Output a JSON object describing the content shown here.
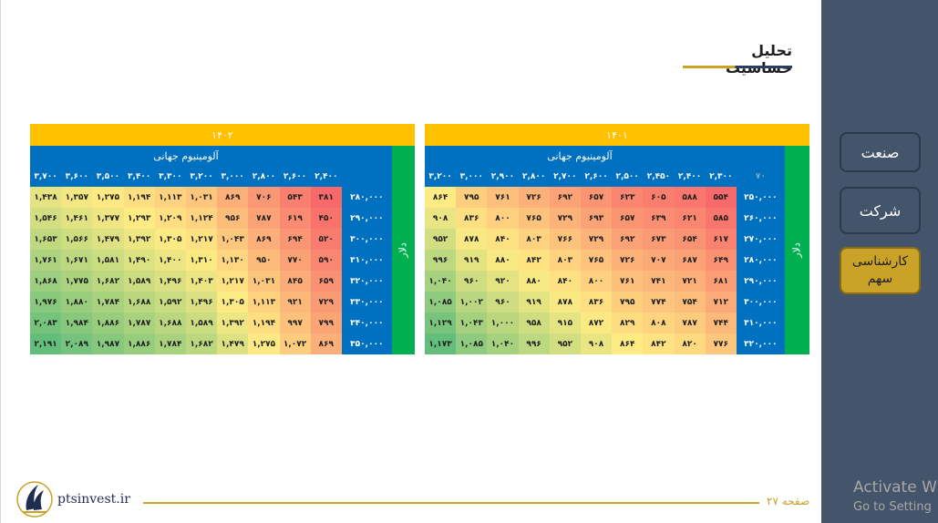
{
  "title": "تحلیل حساسیت",
  "sidebar": {
    "items": [
      {
        "label": "صنعت"
      },
      {
        "label": "شرکت"
      },
      {
        "label_line1": "کارشناسی",
        "label_line2": "سهم"
      }
    ]
  },
  "tables": [
    {
      "year": "۱۴۰۲",
      "header_label": "آلومینیوم جهانی",
      "side_label": "دلار",
      "corner": "",
      "columns": [
        "۳,۷۰۰",
        "۳,۶۰۰",
        "۳,۵۰۰",
        "۳,۴۰۰",
        "۳,۳۰۰",
        "۳,۲۰۰",
        "۳,۰۰۰",
        "۲,۸۰۰",
        "۲,۶۰۰",
        "۲,۴۰۰"
      ],
      "rows": [
        {
          "head": "۲۸۰,۰۰۰",
          "values": [
            "۱,۴۳۸",
            "۱,۳۵۷",
            "۱,۲۷۵",
            "۱,۱۹۴",
            "۱,۱۱۳",
            "۱,۰۳۱",
            "۸۶۹",
            "۷۰۶",
            "۵۴۳",
            "۳۸۱"
          ]
        },
        {
          "head": "۲۹۰,۰۰۰",
          "values": [
            "۱,۵۴۶",
            "۱,۴۶۱",
            "۱,۳۷۷",
            "۱,۲۹۳",
            "۱,۲۰۹",
            "۱,۱۲۴",
            "۹۵۶",
            "۷۸۷",
            "۶۱۹",
            "۴۵۰"
          ]
        },
        {
          "head": "۳۰۰,۰۰۰",
          "values": [
            "۱,۶۵۳",
            "۱,۵۶۶",
            "۱,۴۷۹",
            "۱,۳۹۲",
            "۱,۳۰۵",
            "۱,۲۱۷",
            "۱,۰۴۳",
            "۸۶۹",
            "۶۹۴",
            "۵۲۰"
          ]
        },
        {
          "head": "۳۱۰,۰۰۰",
          "values": [
            "۱,۷۶۱",
            "۱,۶۷۱",
            "۱,۵۸۱",
            "۱,۴۹۰",
            "۱,۴۰۰",
            "۱,۳۱۰",
            "۱,۱۳۰",
            "۹۵۰",
            "۷۷۰",
            "۵۹۰"
          ]
        },
        {
          "head": "۳۲۰,۰۰۰",
          "values": [
            "۱,۸۶۸",
            "۱,۷۷۵",
            "۱,۶۸۲",
            "۱,۵۸۹",
            "۱,۴۹۶",
            "۱,۴۰۳",
            "۱,۲۱۷",
            "۱,۰۳۱",
            "۸۴۵",
            "۶۵۹"
          ]
        },
        {
          "head": "۳۳۰,۰۰۰",
          "values": [
            "۱,۹۷۶",
            "۱,۸۸۰",
            "۱,۷۸۴",
            "۱,۶۸۸",
            "۱,۵۹۲",
            "۱,۴۹۶",
            "۱,۳۰۵",
            "۱,۱۱۳",
            "۹۲۱",
            "۷۲۹"
          ]
        },
        {
          "head": "۳۴۰,۰۰۰",
          "values": [
            "۲,۰۸۳",
            "۱,۹۸۴",
            "۱,۸۸۶",
            "۱,۷۸۷",
            "۱,۶۸۸",
            "۱,۵۸۹",
            "۱,۳۹۲",
            "۱,۱۹۴",
            "۹۹۷",
            "۷۹۹"
          ]
        },
        {
          "head": "۳۵۰,۰۰۰",
          "values": [
            "۲,۱۹۱",
            "۲,۰۸۹",
            "۱,۹۸۷",
            "۱,۸۸۶",
            "۱,۷۸۴",
            "۱,۶۸۲",
            "۱,۴۷۹",
            "۱,۲۷۵",
            "۱,۰۷۲",
            "۸۶۹"
          ]
        }
      ]
    },
    {
      "year": "۱۴۰۱",
      "header_label": "آلومینیوم جهانی",
      "side_label": "دلار",
      "corner": "۷۰",
      "columns": [
        "۳,۲۰۰",
        "۳,۰۰۰",
        "۲,۹۰۰",
        "۲,۸۰۰",
        "۲,۷۰۰",
        "۲,۶۰۰",
        "۲,۵۰۰",
        "۲,۴۵۰",
        "۲,۴۰۰",
        "۲,۳۰۰"
      ],
      "rows": [
        {
          "head": "۲۵۰,۰۰۰",
          "values": [
            "۸۶۴",
            "۷۹۵",
            "۷۶۱",
            "۷۲۶",
            "۶۹۲",
            "۶۵۷",
            "۶۲۳",
            "۶۰۵",
            "۵۸۸",
            "۵۵۴"
          ]
        },
        {
          "head": "۲۶۰,۰۰۰",
          "values": [
            "۹۰۸",
            "۸۳۶",
            "۸۰۰",
            "۷۶۵",
            "۷۲۹",
            "۶۹۳",
            "۶۵۷",
            "۶۳۹",
            "۶۲۱",
            "۵۸۵"
          ]
        },
        {
          "head": "۲۷۰,۰۰۰",
          "values": [
            "۹۵۲",
            "۸۷۸",
            "۸۴۰",
            "۸۰۳",
            "۷۶۶",
            "۷۲۹",
            "۶۹۲",
            "۶۷۳",
            "۶۵۴",
            "۶۱۷"
          ]
        },
        {
          "head": "۲۸۰,۰۰۰",
          "values": [
            "۹۹۶",
            "۹۱۹",
            "۸۸۰",
            "۸۴۲",
            "۸۰۳",
            "۷۶۵",
            "۷۲۶",
            "۷۰۷",
            "۶۸۷",
            "۶۴۹"
          ]
        },
        {
          "head": "۲۹۰,۰۰۰",
          "values": [
            "۱,۰۴۰",
            "۹۶۰",
            "۹۲۰",
            "۸۸۰",
            "۸۴۰",
            "۸۰۰",
            "۷۶۱",
            "۷۴۱",
            "۷۲۱",
            "۶۸۱"
          ]
        },
        {
          "head": "۳۰۰,۰۰۰",
          "values": [
            "۱,۰۸۵",
            "۱,۰۰۲",
            "۹۶۰",
            "۹۱۹",
            "۸۷۸",
            "۸۳۶",
            "۷۹۵",
            "۷۷۴",
            "۷۵۴",
            "۷۱۲"
          ]
        },
        {
          "head": "۳۱۰,۰۰۰",
          "values": [
            "۱,۱۲۹",
            "۱,۰۴۳",
            "۱,۰۰۰",
            "۹۵۸",
            "۹۱۵",
            "۸۷۲",
            "۸۲۹",
            "۸۰۸",
            "۷۸۷",
            "۷۴۴"
          ]
        },
        {
          "head": "۳۲۰,۰۰۰",
          "values": [
            "۱,۱۷۳",
            "۱,۰۸۵",
            "۱,۰۴۰",
            "۹۹۶",
            "۹۵۲",
            "۹۰۸",
            "۸۶۴",
            "۸۴۲",
            "۸۲۰",
            "۷۷۶"
          ]
        }
      ]
    }
  ],
  "footer": {
    "site": "ptsinvest.ir",
    "page": "صفحه ۲۷"
  },
  "watermark": {
    "line1": "Activate W",
    "line2": "Go to Setting"
  },
  "colors": {
    "panel": "#44546a",
    "year_bar": "#ffc000",
    "header_blue": "#0070c0",
    "side_green": "#00b050",
    "gold": "#c9a227",
    "scale_low": "#f8696b",
    "scale_mid": "#ffeb84",
    "scale_high": "#63be7b"
  }
}
